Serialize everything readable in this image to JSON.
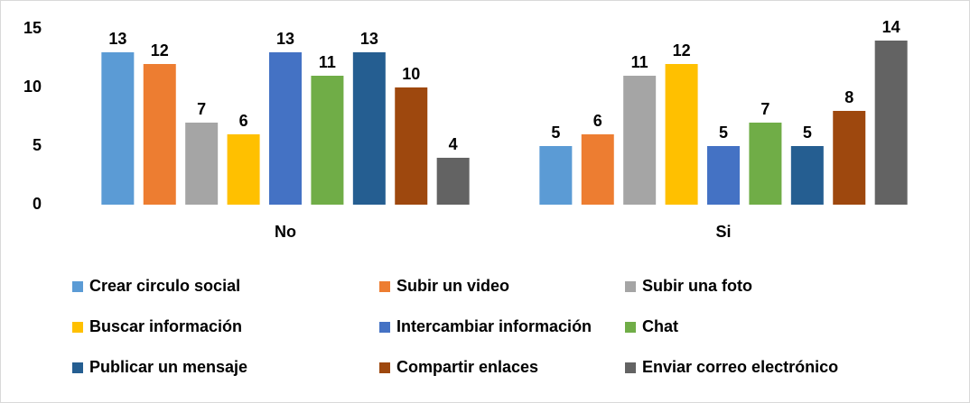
{
  "chart_data": {
    "type": "bar",
    "categories": [
      "No",
      "Si"
    ],
    "series": [
      {
        "name": "Crear circulo social",
        "color": "#5b9bd5",
        "values": [
          13,
          5
        ]
      },
      {
        "name": "Subir un video",
        "color": "#ed7d31",
        "values": [
          12,
          6
        ]
      },
      {
        "name": "Subir una foto",
        "color": "#a5a5a5",
        "values": [
          7,
          11
        ]
      },
      {
        "name": "Buscar información",
        "color": "#ffc000",
        "values": [
          6,
          12
        ]
      },
      {
        "name": "Intercambiar información",
        "color": "#4472c4",
        "values": [
          13,
          5
        ]
      },
      {
        "name": "Chat",
        "color": "#70ad47",
        "values": [
          11,
          7
        ]
      },
      {
        "name": "Publicar un mensaje",
        "color": "#255e91",
        "values": [
          13,
          5
        ]
      },
      {
        "name": "Compartir enlaces",
        "color": "#9e480e",
        "values": [
          10,
          8
        ]
      },
      {
        "name": "Enviar correo electrónico",
        "color": "#636363",
        "values": [
          4,
          14
        ]
      }
    ],
    "ylim": [
      0,
      15
    ],
    "yticks": [
      0,
      5,
      10,
      15
    ],
    "grid": false,
    "legend": "bottom"
  }
}
